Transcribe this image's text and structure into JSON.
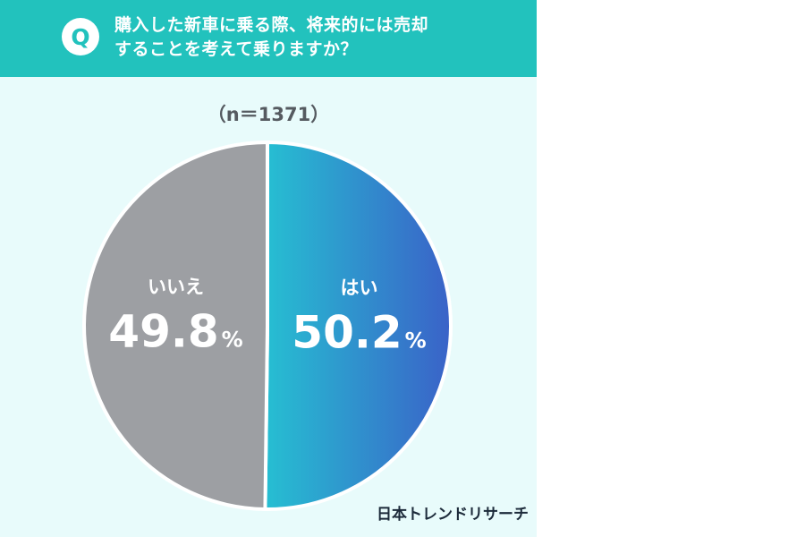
{
  "header": {
    "badge": "Q",
    "question_line1": "購入した新車に乗る際、将来的には売却",
    "question_line2": "することを考えて乗りますか？"
  },
  "sample_label": "（n＝1371）",
  "brand": "日本トレンドリサーチ",
  "chart_data": {
    "type": "pie",
    "title": "",
    "slices": [
      {
        "label": "はい",
        "value": 50.2,
        "display": "50.2",
        "unit": "%",
        "color_start": "#26bfd2",
        "color_end": "#3a62c8"
      },
      {
        "label": "いいえ",
        "value": 49.8,
        "display": "49.8",
        "unit": "%",
        "color": "#9d9fa3"
      }
    ],
    "start": "12 o'clock, clockwise"
  },
  "colors": {
    "header_bg": "#22c2bd",
    "panel_bg": "#e8fbfb",
    "yes_start": "#26bfd2",
    "yes_end": "#3a62c8",
    "no": "#9d9fa3"
  }
}
